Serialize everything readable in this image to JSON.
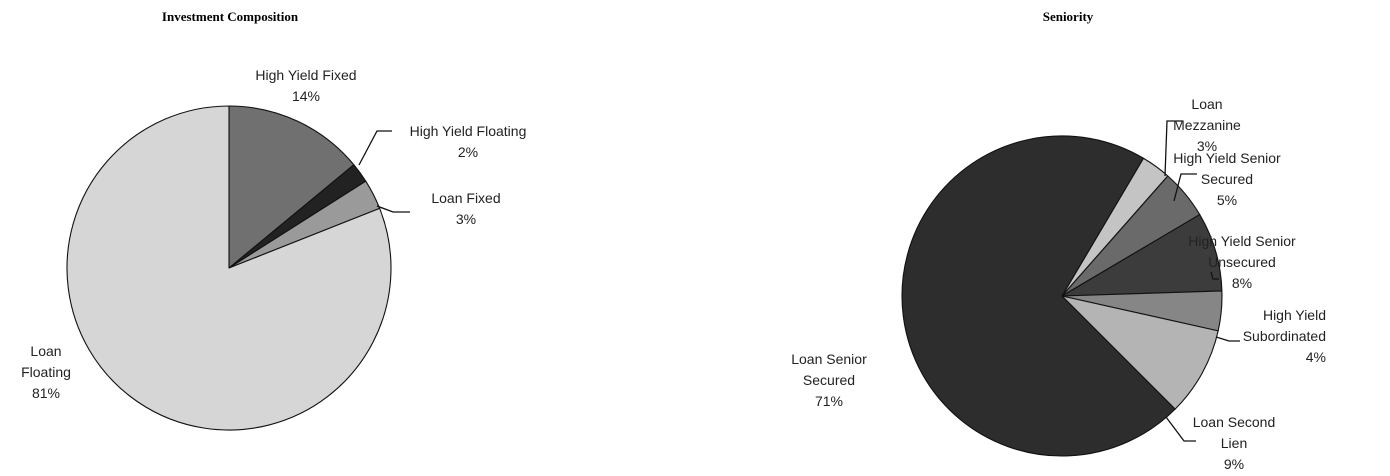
{
  "chart_data": [
    {
      "type": "pie",
      "title": "Investment Composition",
      "start": "top",
      "direction": "clockwise",
      "slices": [
        {
          "label": [
            "High Yield Fixed",
            "14%"
          ],
          "value": 14,
          "color": "#707070"
        },
        {
          "label": [
            "High Yield Floating",
            "2%"
          ],
          "value": 2,
          "color": "#222222"
        },
        {
          "label": [
            "Loan Fixed",
            "3%"
          ],
          "value": 3,
          "color": "#9a9a9a"
        },
        {
          "label": [
            "Loan",
            "Floating",
            "81%"
          ],
          "value": 81,
          "color": "#d6d6d6"
        }
      ]
    },
    {
      "type": "pie",
      "title": "Seniority",
      "direction": "clockwise",
      "slices": [
        {
          "label": [
            "Loan",
            "Mezzanine",
            "3%"
          ],
          "value": 3,
          "color": "#c4c4c4"
        },
        {
          "label": [
            "High Yield Senior",
            "Secured",
            "5%"
          ],
          "value": 5,
          "color": "#6a6a6a"
        },
        {
          "label": [
            "High Yield Senior",
            "Unsecured",
            "8%"
          ],
          "value": 8,
          "color": "#3c3c3c"
        },
        {
          "label": [
            "High Yield",
            "Subordinated",
            "4%"
          ],
          "value": 4,
          "color": "#868686"
        },
        {
          "label": [
            "Loan Second",
            "Lien",
            "9%"
          ],
          "value": 9,
          "color": "#b4b4b4"
        },
        {
          "label": [
            "Loan Senior",
            "Secured",
            "71%"
          ],
          "value": 71,
          "color": "#2d2d2d"
        }
      ]
    }
  ]
}
